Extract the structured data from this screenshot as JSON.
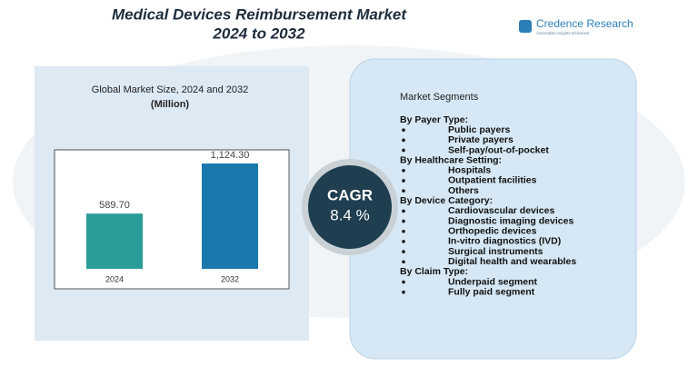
{
  "brand": {
    "name": "Credence Research",
    "tagline": "Actionable Insights Delivered"
  },
  "chart_data": {
    "type": "bar",
    "title": "Medical Devices Reimbursement Market",
    "subtitle": "2024 to 2032",
    "chart_title": "Global Market Size, 2024 and 2032",
    "unit_label": "(Million)",
    "categories": [
      "2024",
      "2032"
    ],
    "values": [
      589.7,
      1124.3
    ],
    "value_labels": [
      "589.70",
      "1,124.30"
    ],
    "colors": [
      "#2a9d99",
      "#1a78ad"
    ],
    "ylim": [
      0,
      1270
    ]
  },
  "cagr": {
    "label": "CAGR",
    "value": "8.4 %"
  },
  "segments": {
    "title": "Market Segments",
    "groups": [
      {
        "heading": "By Payer Type:",
        "items": [
          "Public payers",
          "Private payers",
          "Self-pay/out-of-pocket"
        ]
      },
      {
        "heading": "By Healthcare Setting:",
        "items": [
          "Hospitals",
          "Outpatient facilities",
          "Others"
        ]
      },
      {
        "heading": "By Device Category:",
        "items": [
          "Cardiovascular devices",
          "Diagnostic imaging devices",
          "Orthopedic devices",
          "In-vitro diagnostics (IVD)",
          "Surgical instruments",
          "Digital health and wearables"
        ]
      },
      {
        "heading": "By Claim Type:",
        "items": [
          "Underpaid segment",
          "Fully paid segment"
        ]
      }
    ]
  }
}
